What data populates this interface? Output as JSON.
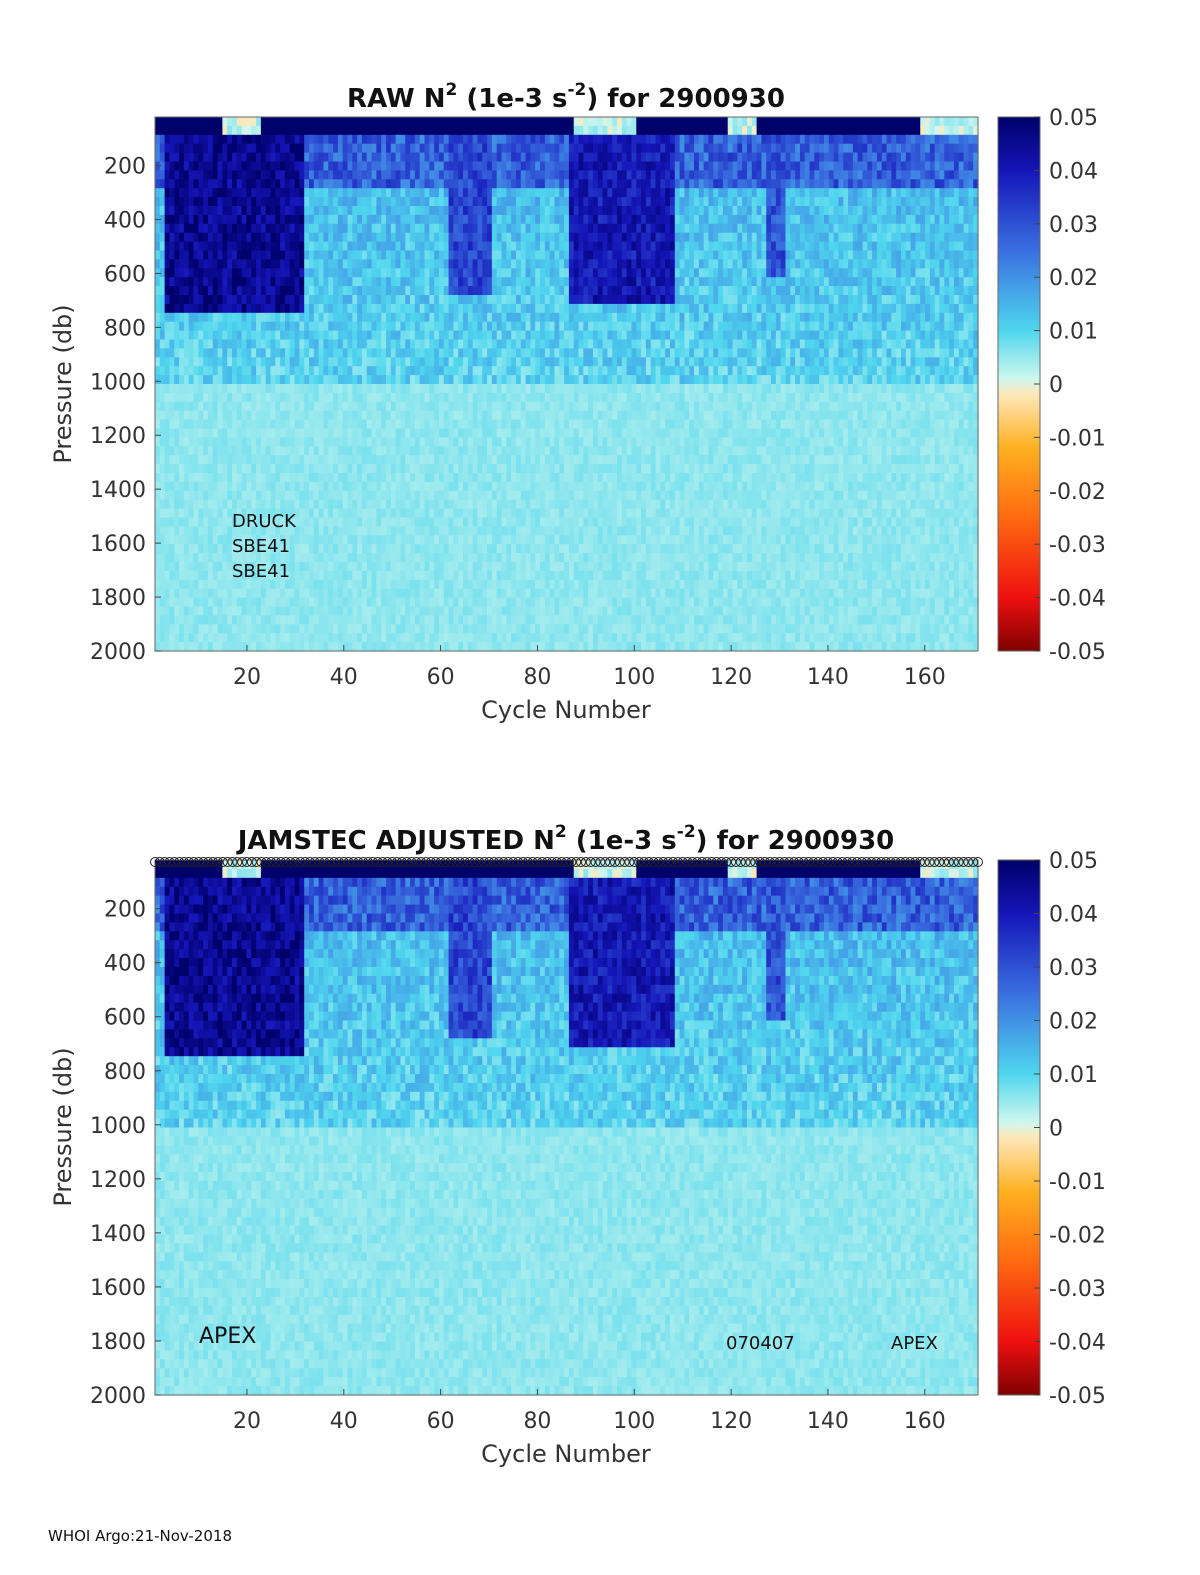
{
  "chart_data": [
    {
      "type": "heatmap",
      "title": "RAW N",
      "title_sup": "2",
      "title_mid": " (1e-3 s",
      "title_sup2": "-2",
      "title_end": ") for 2900930",
      "xlabel": "Cycle Number",
      "ylabel": "Pressure (db)",
      "xlim": [
        1,
        171
      ],
      "ylim": [
        2000,
        20
      ],
      "x_ticks": [
        20,
        40,
        60,
        80,
        100,
        120,
        140,
        160
      ],
      "y_ticks": [
        200,
        400,
        600,
        800,
        1000,
        1200,
        1400,
        1600,
        1800,
        2000
      ],
      "colorbar": {
        "min": -0.05,
        "max": 0.05,
        "ticks": [
          "0.05",
          "0.04",
          "0.03",
          "0.02",
          "0.01",
          "0",
          "-0.01",
          "-0.02",
          "-0.03",
          "-0.04",
          "-0.05"
        ]
      },
      "annotations": [
        "DRUCK",
        "SBE41",
        "SBE41"
      ],
      "strong_zones": [
        [
          3,
          31,
          0.045,
          760
        ],
        [
          62,
          70,
          0.032,
          680
        ],
        [
          87,
          108,
          0.04,
          720
        ],
        [
          128,
          131,
          0.03,
          620
        ]
      ],
      "surface_light_zones": [
        [
          15,
          22
        ],
        [
          88,
          100
        ],
        [
          120,
          125
        ],
        [
          160,
          171
        ]
      ]
    },
    {
      "type": "heatmap",
      "title": "JAMSTEC  ADJUSTED N",
      "title_sup": "2",
      "title_mid": " (1e-3 s",
      "title_sup2": "-2",
      "title_end": ") for 2900930",
      "xlabel": "Cycle Number",
      "ylabel": "Pressure (db)",
      "xlim": [
        1,
        171
      ],
      "ylim": [
        2000,
        20
      ],
      "x_ticks": [
        20,
        40,
        60,
        80,
        100,
        120,
        140,
        160
      ],
      "y_ticks": [
        200,
        400,
        600,
        800,
        1000,
        1200,
        1400,
        1600,
        1800,
        2000
      ],
      "colorbar": {
        "min": -0.05,
        "max": 0.05,
        "ticks": [
          "0.05",
          "0.04",
          "0.03",
          "0.02",
          "0.01",
          "0",
          "-0.01",
          "-0.02",
          "-0.03",
          "-0.04",
          "-0.05"
        ]
      },
      "annotations_left": [
        "APEX"
      ],
      "annotations_right": [
        "070407",
        "APEX"
      ],
      "top_marker_row": true,
      "strong_zones": [
        [
          3,
          31,
          0.045,
          760
        ],
        [
          62,
          70,
          0.032,
          680
        ],
        [
          87,
          108,
          0.04,
          720
        ],
        [
          128,
          131,
          0.03,
          620
        ]
      ],
      "surface_light_zones": [
        [
          15,
          22
        ],
        [
          88,
          100
        ],
        [
          120,
          125
        ],
        [
          160,
          171
        ]
      ]
    }
  ],
  "footer": "WHOI Argo:21-Nov-2018"
}
